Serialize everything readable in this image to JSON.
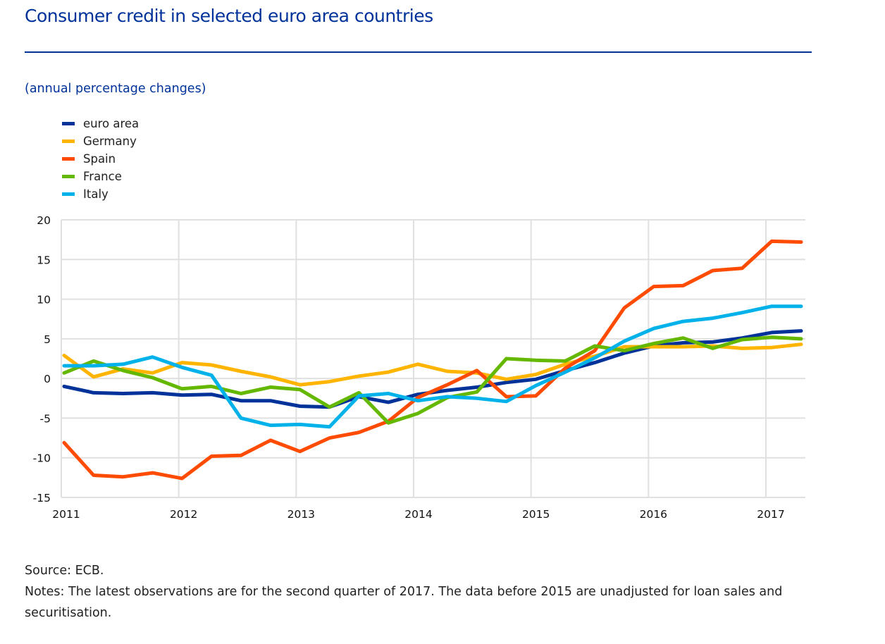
{
  "header": {
    "title": "Consumer credit in selected euro area countries",
    "subtitle": "(annual percentage changes)"
  },
  "footer": {
    "source": "Source: ECB.",
    "notes": "Notes: The latest observations are for the second quarter of 2017. The data before 2015 are unadjusted for loan sales and securitisation."
  },
  "chart_data": {
    "type": "line",
    "title": "Consumer credit in selected euro area countries",
    "subtitle": "(annual percentage changes)",
    "xlabel": "",
    "ylabel": "",
    "ylim": [
      -15,
      20
    ],
    "yticks": [
      20,
      15,
      10,
      5,
      0,
      -5,
      -10,
      -15
    ],
    "xticks": [
      "2011",
      "2012",
      "2013",
      "2014",
      "2015",
      "2016",
      "2017"
    ],
    "grid": true,
    "legend_position": "top-left",
    "x": [
      "2011Q1",
      "2011Q2",
      "2011Q3",
      "2011Q4",
      "2012Q1",
      "2012Q2",
      "2012Q3",
      "2012Q4",
      "2013Q1",
      "2013Q2",
      "2013Q3",
      "2013Q4",
      "2014Q1",
      "2014Q2",
      "2014Q3",
      "2014Q4",
      "2015Q1",
      "2015Q2",
      "2015Q3",
      "2015Q4",
      "2016Q1",
      "2016Q2",
      "2016Q3",
      "2016Q4",
      "2017Q1",
      "2017Q2"
    ],
    "series": [
      {
        "name": "euro area",
        "color": "#003299",
        "values": [
          -1.0,
          -1.8,
          -1.9,
          -1.8,
          -2.1,
          -2.0,
          -2.8,
          -2.8,
          -3.5,
          -3.6,
          -2.3,
          -3.0,
          -2.0,
          -1.5,
          -1.1,
          -0.5,
          -0.1,
          1.0,
          2.0,
          3.2,
          4.1,
          4.5,
          4.6,
          5.1,
          5.8,
          6.0
        ]
      },
      {
        "name": "Germany",
        "color": "#FFB400",
        "values": [
          2.9,
          0.2,
          1.2,
          0.7,
          2.0,
          1.7,
          0.9,
          0.2,
          -0.8,
          -0.4,
          0.3,
          0.8,
          1.8,
          0.9,
          0.7,
          -0.1,
          0.5,
          1.8,
          2.8,
          4.0,
          4.0,
          4.0,
          4.1,
          3.8,
          3.9,
          4.3
        ]
      },
      {
        "name": "Spain",
        "color": "#FF4B00",
        "values": [
          -8.1,
          -12.2,
          -12.4,
          -11.9,
          -12.6,
          -9.8,
          -9.7,
          -7.8,
          -9.2,
          -7.5,
          -6.8,
          -5.4,
          -2.4,
          -0.8,
          1.0,
          -2.3,
          -2.2,
          1.3,
          3.5,
          8.9,
          11.6,
          11.7,
          13.6,
          13.9,
          17.3,
          17.2
        ]
      },
      {
        "name": "France",
        "color": "#65B800",
        "values": [
          0.7,
          2.2,
          1.0,
          0.1,
          -1.3,
          -1.0,
          -1.9,
          -1.1,
          -1.4,
          -3.6,
          -1.8,
          -5.6,
          -4.4,
          -2.4,
          -1.7,
          2.5,
          2.3,
          2.2,
          4.1,
          3.5,
          4.4,
          5.1,
          3.8,
          4.9,
          5.2,
          5.0
        ]
      },
      {
        "name": "Italy",
        "color": "#00B1EA",
        "values": [
          1.6,
          1.6,
          1.8,
          2.7,
          1.4,
          0.4,
          -5.0,
          -5.9,
          -5.8,
          -6.1,
          -2.2,
          -1.9,
          -2.8,
          -2.3,
          -2.5,
          -2.9,
          -0.9,
          0.8,
          2.6,
          4.7,
          6.3,
          7.2,
          7.6,
          8.3,
          9.1,
          9.1
        ]
      }
    ]
  }
}
